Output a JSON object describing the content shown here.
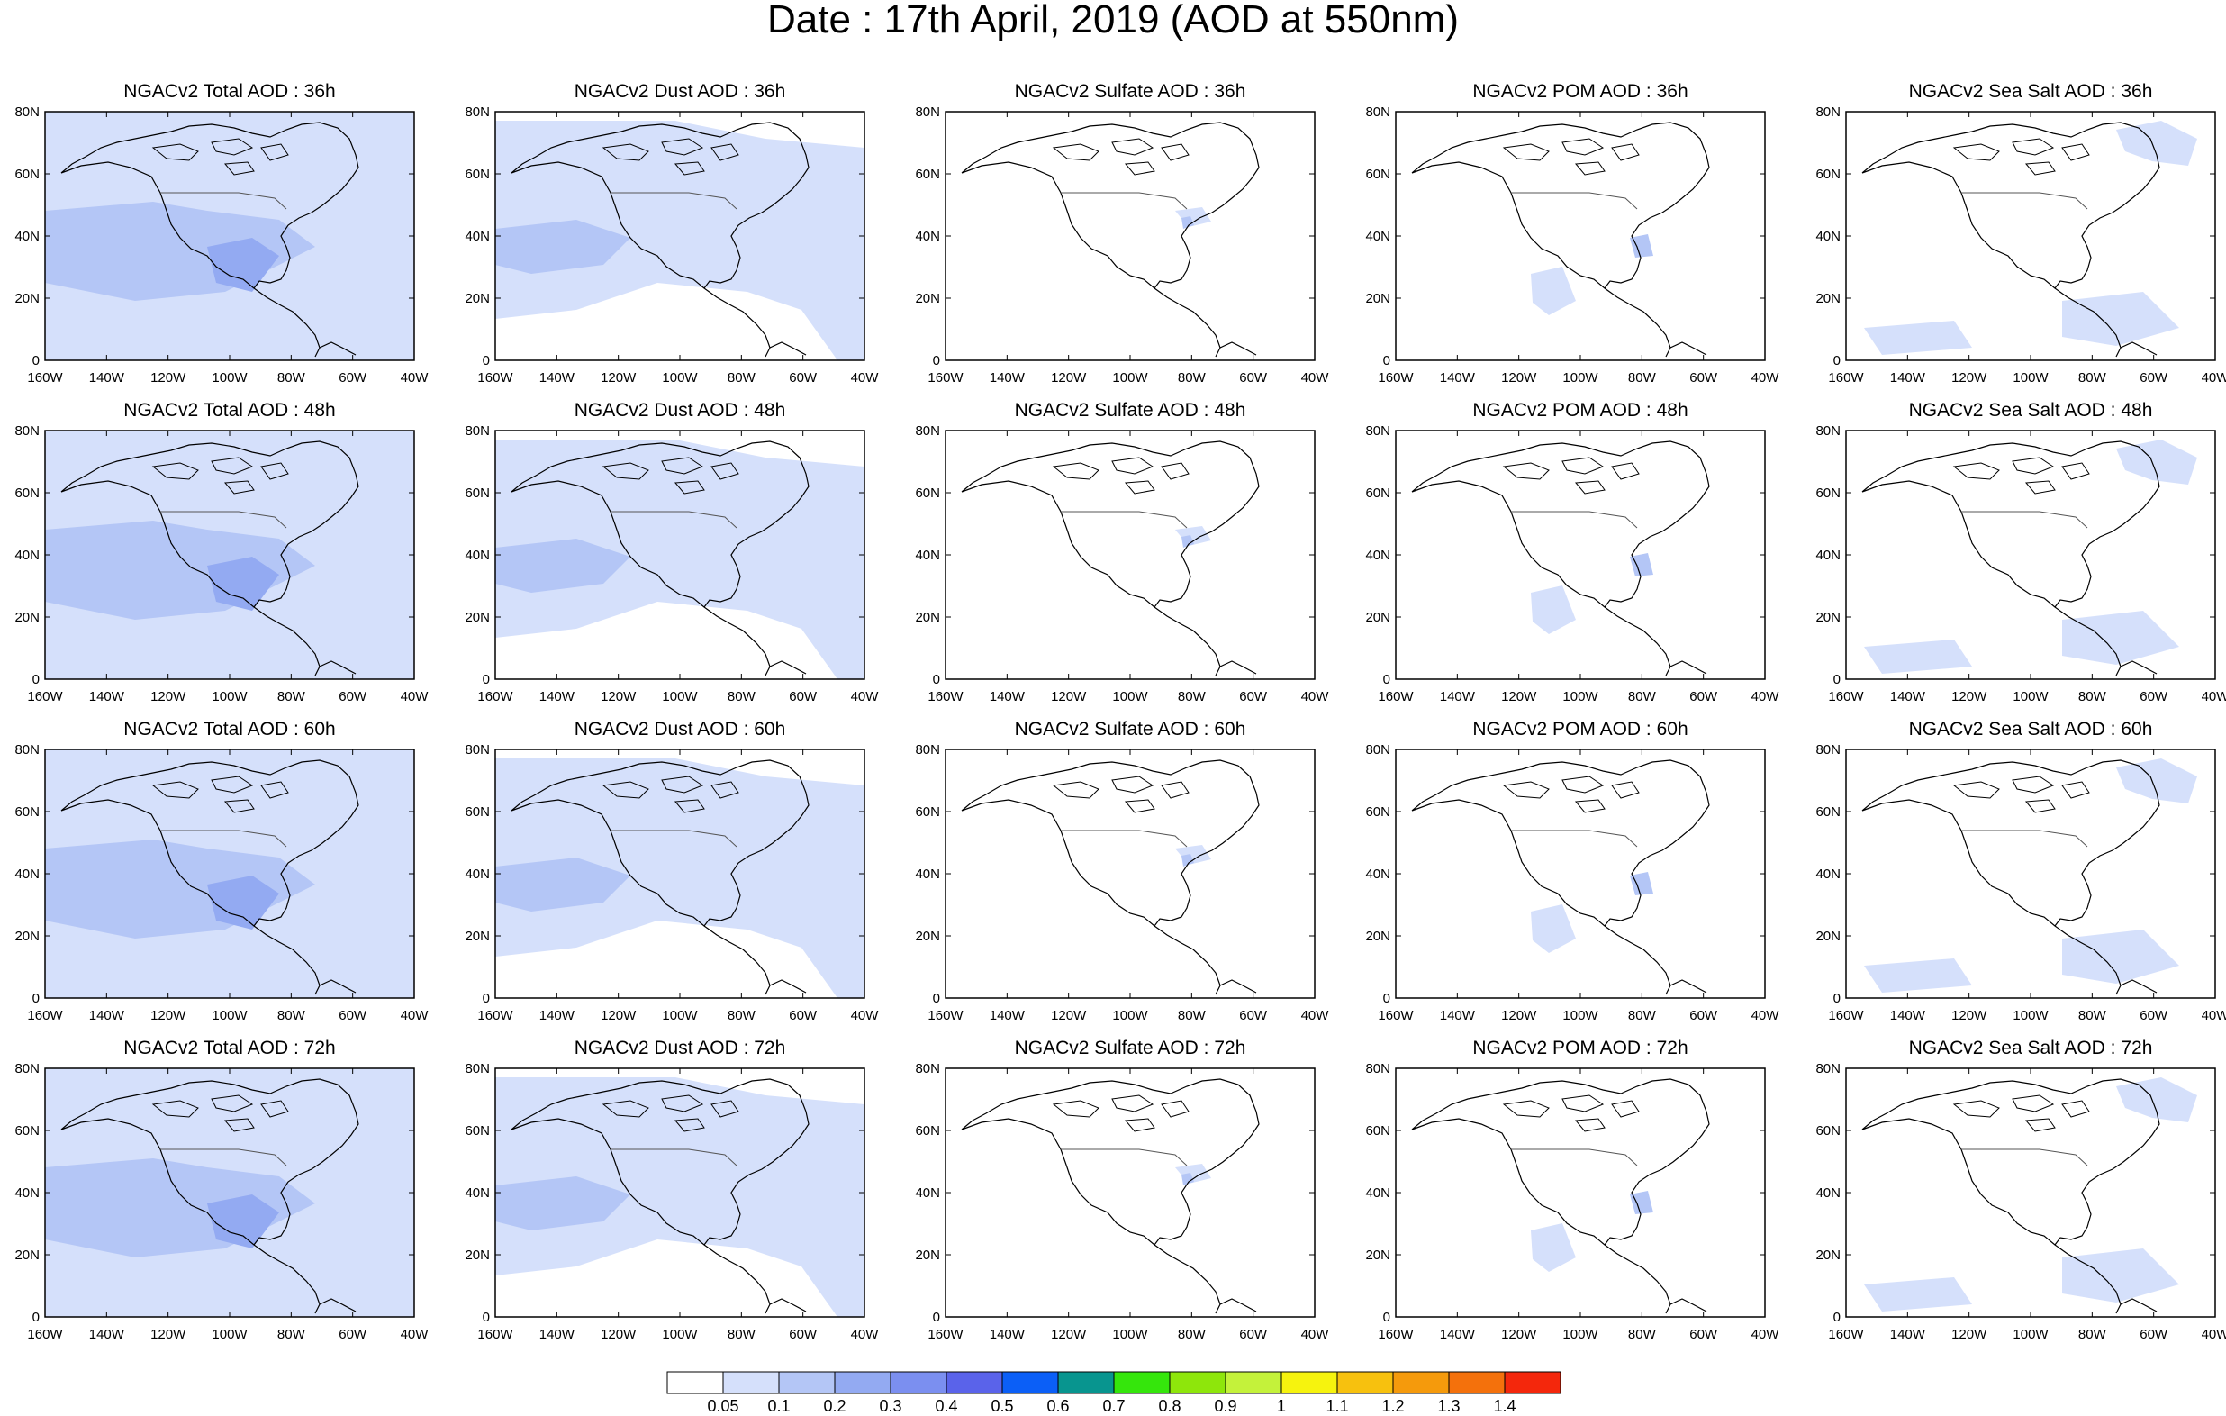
{
  "figure_title": "Date : 17th April, 2019 (AOD at 550nm)",
  "panel_titles": [
    [
      "NGACv2 Total AOD : 36h",
      "NGACv2 Dust AOD : 36h",
      "NGACv2 Sulfate AOD : 36h",
      "NGACv2 POM AOD : 36h",
      "NGACv2 Sea Salt AOD : 36h"
    ],
    [
      "NGACv2 Total AOD : 48h",
      "NGACv2 Dust AOD : 48h",
      "NGACv2 Sulfate AOD : 48h",
      "NGACv2 POM AOD : 48h",
      "NGACv2 Sea Salt AOD : 48h"
    ],
    [
      "NGACv2 Total AOD : 60h",
      "NGACv2 Dust AOD : 60h",
      "NGACv2 Sulfate AOD : 60h",
      "NGACv2 POM AOD : 60h",
      "NGACv2 Sea Salt AOD : 60h"
    ],
    [
      "NGACv2 Total AOD : 72h",
      "NGACv2 Dust AOD : 72h",
      "NGACv2 Sulfate AOD : 72h",
      "NGACv2 POM AOD : 72h",
      "NGACv2 Sea Salt  AOD : 72h"
    ]
  ],
  "y_ticks": [
    "80N",
    "60N",
    "40N",
    "20N",
    "0"
  ],
  "x_ticks": [
    "160W",
    "140W",
    "120W",
    "100W",
    "80W",
    "60W",
    "40W"
  ],
  "colorbar": {
    "labels": [
      "0.05",
      "0.1",
      "0.2",
      "0.3",
      "0.4",
      "0.5",
      "0.6",
      "0.7",
      "0.8",
      "0.9",
      "1",
      "1.1",
      "1.2",
      "1.3",
      "1.4"
    ],
    "colors": [
      "#ffffff",
      "#d5e0fb",
      "#b4c6f6",
      "#93aaf2",
      "#7b8ff0",
      "#5a63ea",
      "#0b5ff7",
      "#08958f",
      "#35e60c",
      "#8ee60b",
      "#c4f23a",
      "#f6f30e",
      "#f7c10e",
      "#f59a0c",
      "#f4710c",
      "#f4270c"
    ]
  },
  "map_colors": {
    "shade_light": "#d5e0fb",
    "shade_mid": "#b4c6f6",
    "shade_dark": "#93aaf2",
    "coast": "#000000"
  }
}
